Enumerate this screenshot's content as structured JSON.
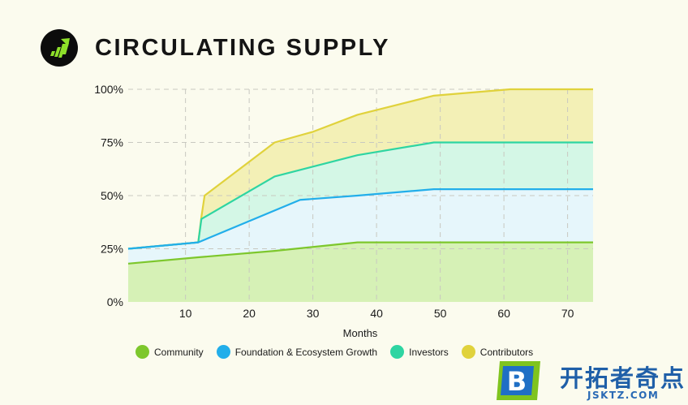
{
  "header": {
    "title": "CIRCULATING SUPPLY",
    "logo_icon": "chart-growth-icon"
  },
  "chart_data": {
    "type": "area",
    "stacked": false,
    "title": "CIRCULATING SUPPLY",
    "xlabel": "Months",
    "ylabel": "",
    "xlim": [
      1,
      74
    ],
    "ylim": [
      0,
      100
    ],
    "x_ticks": [
      10,
      20,
      30,
      40,
      50,
      60,
      70
    ],
    "y_ticks": [
      0,
      25,
      50,
      75,
      100
    ],
    "y_tick_labels": [
      "0%",
      "25%",
      "50%",
      "75%",
      "100%"
    ],
    "grid": true,
    "legend_position": "bottom",
    "series": [
      {
        "name": "Contributors",
        "color": "#e0d23c",
        "fill": "#f3f0b6",
        "points": [
          [
            1,
            25
          ],
          [
            12,
            28
          ],
          [
            12.5,
            40
          ],
          [
            13,
            50
          ],
          [
            24,
            75
          ],
          [
            30,
            80
          ],
          [
            37,
            88
          ],
          [
            49,
            97
          ],
          [
            61,
            100
          ],
          [
            74,
            100
          ]
        ]
      },
      {
        "name": "Investors",
        "color": "#2ed5a2",
        "fill": "#d4f7e6",
        "points": [
          [
            1,
            25
          ],
          [
            12,
            28
          ],
          [
            12.5,
            39
          ],
          [
            24,
            59
          ],
          [
            37,
            69
          ],
          [
            49,
            75
          ],
          [
            74,
            75
          ]
        ]
      },
      {
        "name": "Foundation & Ecosystem Growth",
        "color": "#22aeea",
        "fill": "#e6f6fb",
        "points": [
          [
            1,
            25
          ],
          [
            12,
            28
          ],
          [
            28,
            48
          ],
          [
            37,
            50
          ],
          [
            49,
            53
          ],
          [
            74,
            53
          ]
        ]
      },
      {
        "name": "Community",
        "color": "#7dc72c",
        "fill": "#d6f1b6",
        "points": [
          [
            1,
            18
          ],
          [
            12,
            21
          ],
          [
            24,
            24
          ],
          [
            37,
            28
          ],
          [
            74,
            28
          ]
        ]
      }
    ]
  },
  "legend": {
    "items": [
      {
        "name": "Community",
        "color": "#7dc72c"
      },
      {
        "name": "Foundation & Ecosystem Growth",
        "color": "#22aeea"
      },
      {
        "name": "Investors",
        "color": "#2ed5a2"
      },
      {
        "name": "Contributors",
        "color": "#e0d23c"
      }
    ]
  },
  "watermark": {
    "logo_letter": "B",
    "text": "开拓者奇点",
    "sub": "JSKTZ.COM"
  }
}
